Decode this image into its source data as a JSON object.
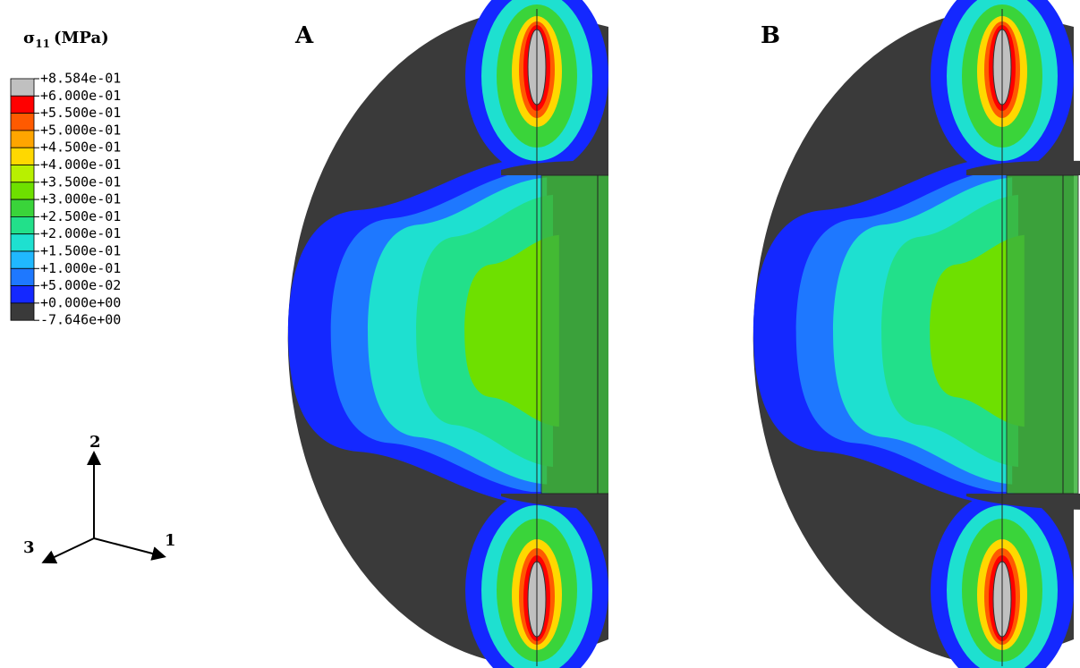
{
  "legend": {
    "title": {
      "symbol": "σ",
      "subscript": "11",
      "unit": "(MPa)"
    },
    "labels": [
      "+8.584e-01",
      "+6.000e-01",
      "+5.500e-01",
      "+5.000e-01",
      "+4.500e-01",
      "+4.000e-01",
      "+3.500e-01",
      "+3.000e-01",
      "+2.500e-01",
      "+2.000e-01",
      "+1.500e-01",
      "+1.000e-01",
      "+5.000e-02",
      "+0.000e+00",
      "-7.646e+00"
    ],
    "colors": [
      "#c0c0c0",
      "#ff0000",
      "#ff5a00",
      "#ffa500",
      "#ffd800",
      "#b8f000",
      "#6ee000",
      "#3ad43a",
      "#22e08a",
      "#1ee0d0",
      "#20b8ff",
      "#1e78ff",
      "#1428ff",
      "#3a3a3a"
    ]
  },
  "axes": {
    "x1": "1",
    "x2": "2",
    "x3": "3"
  },
  "panels": [
    "A",
    "B"
  ]
}
